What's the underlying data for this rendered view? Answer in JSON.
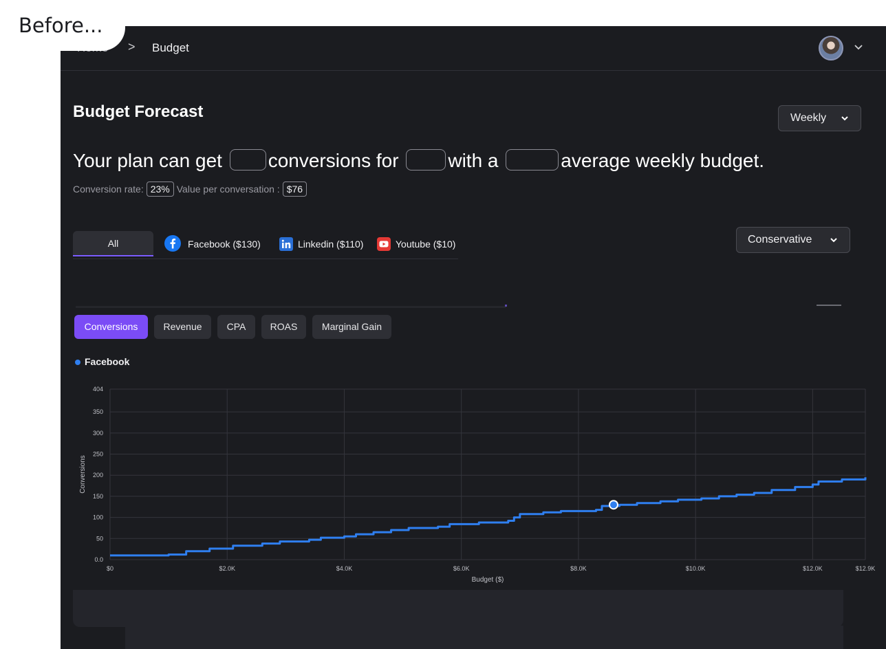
{
  "overlay": {
    "before_label": "Before..."
  },
  "breadcrumb": {
    "home": "Home",
    "separator": ">",
    "current": "Budget"
  },
  "header": {
    "title": "Budget Forecast",
    "period_dropdown": "Weekly",
    "scenario_dropdown": "Conservative"
  },
  "headline": {
    "part1": "Your plan can get",
    "part2": "conversions for",
    "part3": "with a",
    "part4": "average weekly budget."
  },
  "stats": {
    "conversion_rate_label": "Conversion rate:",
    "conversion_rate_value": "23%",
    "value_label": "Value per conversation :",
    "value_value": "$76"
  },
  "channels": {
    "all": "All",
    "facebook": "Facebook ($130)",
    "linkedin": "Linkedin ($110)",
    "youtube": "Youtube ($10)"
  },
  "metric_tabs": [
    "Conversions",
    "Revenue",
    "CPA",
    "ROAS",
    "Marginal Gain"
  ],
  "legend": {
    "facebook": "Facebook"
  },
  "colors": {
    "accent": "#7b4cf6",
    "series": "#2f7ff0",
    "background": "#1b1c20"
  },
  "chart_data": {
    "type": "line",
    "xlabel": "Budget ($)",
    "ylabel": "Conversions",
    "xlim": [
      0,
      12900
    ],
    "ylim": [
      0,
      404
    ],
    "x_ticks": [
      {
        "value": 0,
        "label": "$0"
      },
      {
        "value": 2000,
        "label": "$2.0K"
      },
      {
        "value": 4000,
        "label": "$4.0K"
      },
      {
        "value": 6000,
        "label": "$6.0K"
      },
      {
        "value": 8000,
        "label": "$8.0K"
      },
      {
        "value": 10000,
        "label": "$10.0K"
      },
      {
        "value": 12000,
        "label": "$12.0K"
      },
      {
        "value": 12900,
        "label": "$12.9K"
      }
    ],
    "y_ticks": [
      {
        "value": 0,
        "label": "0.0"
      },
      {
        "value": 50,
        "label": "50"
      },
      {
        "value": 100,
        "label": "100"
      },
      {
        "value": 150,
        "label": "150"
      },
      {
        "value": 200,
        "label": "200"
      },
      {
        "value": 250,
        "label": "250"
      },
      {
        "value": 300,
        "label": "300"
      },
      {
        "value": 350,
        "label": "350"
      },
      {
        "value": 404,
        "label": "404"
      }
    ],
    "grid": true,
    "series": [
      {
        "name": "Facebook",
        "step": true,
        "points": [
          [
            0,
            10
          ],
          [
            800,
            10
          ],
          [
            1000,
            12
          ],
          [
            1300,
            20
          ],
          [
            1700,
            26
          ],
          [
            2100,
            33
          ],
          [
            2600,
            38
          ],
          [
            2900,
            43
          ],
          [
            3400,
            47
          ],
          [
            3600,
            52
          ],
          [
            4000,
            55
          ],
          [
            4200,
            60
          ],
          [
            4500,
            65
          ],
          [
            4800,
            70
          ],
          [
            5100,
            75
          ],
          [
            5600,
            78
          ],
          [
            5800,
            84
          ],
          [
            6300,
            88
          ],
          [
            6800,
            92
          ],
          [
            6900,
            100
          ],
          [
            7000,
            108
          ],
          [
            7400,
            112
          ],
          [
            7700,
            115
          ],
          [
            8300,
            118
          ],
          [
            8400,
            127
          ],
          [
            8700,
            130
          ],
          [
            9000,
            134
          ],
          [
            9400,
            138
          ],
          [
            9700,
            142
          ],
          [
            10100,
            145
          ],
          [
            10400,
            150
          ],
          [
            10700,
            154
          ],
          [
            11000,
            158
          ],
          [
            11300,
            165
          ],
          [
            11700,
            172
          ],
          [
            12000,
            178
          ],
          [
            12100,
            185
          ],
          [
            12500,
            190
          ],
          [
            12900,
            195
          ]
        ]
      }
    ],
    "highlight": {
      "x": 8600,
      "y": 130
    }
  }
}
